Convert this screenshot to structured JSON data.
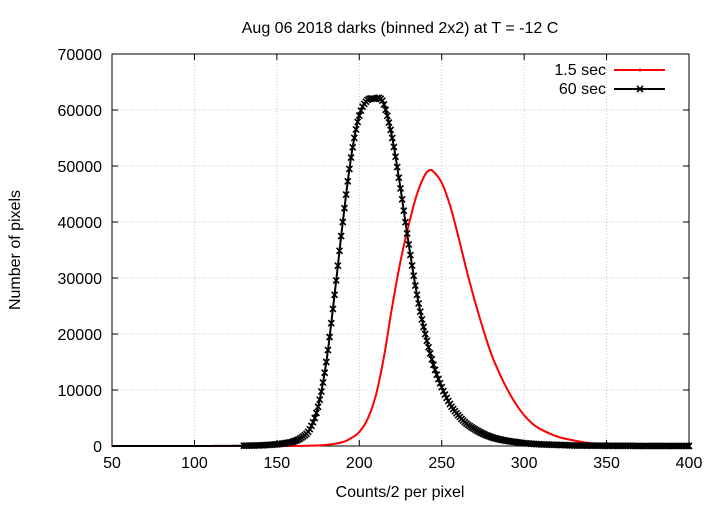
{
  "chart_data": {
    "type": "line",
    "title": "Aug 06 2018 darks (binned 2x2) at T = -12 C",
    "xlabel": "Counts/2 per pixel",
    "ylabel": "Number of pixels",
    "xlim": [
      50,
      400
    ],
    "ylim": [
      0,
      70000
    ],
    "xticks": [
      50,
      100,
      150,
      200,
      250,
      300,
      350,
      400
    ],
    "yticks": [
      0,
      10000,
      20000,
      30000,
      40000,
      50000,
      60000,
      70000
    ],
    "grid": true,
    "legend_position": "top-right",
    "series": [
      {
        "name": "1.5 sec",
        "color": "#ff0000",
        "marker": "dot",
        "x": [
          50,
          100,
          150,
          170,
          180,
          190,
          195,
          200,
          205,
          210,
          215,
          220,
          225,
          230,
          235,
          240,
          243,
          245,
          250,
          255,
          260,
          265,
          270,
          275,
          280,
          285,
          290,
          295,
          300,
          305,
          310,
          320,
          330,
          340,
          350,
          360,
          375,
          400
        ],
        "y": [
          0,
          0,
          0,
          50,
          200,
          700,
          1400,
          2500,
          4800,
          9000,
          16000,
          25000,
          33000,
          39500,
          45000,
          48500,
          49300,
          49000,
          47000,
          43000,
          37500,
          31500,
          26000,
          21000,
          16500,
          13000,
          10000,
          7500,
          5500,
          4000,
          3000,
          1700,
          1000,
          500,
          200,
          100,
          50,
          0
        ]
      },
      {
        "name": "60 sec",
        "color": "#000000",
        "marker": "x",
        "x": [
          50,
          100,
          130,
          135,
          140,
          145,
          150,
          155,
          160,
          165,
          170,
          175,
          180,
          185,
          190,
          195,
          200,
          205,
          210,
          212,
          215,
          220,
          225,
          230,
          235,
          240,
          245,
          250,
          255,
          260,
          265,
          270,
          275,
          280,
          285,
          290,
          295,
          300,
          310,
          320,
          330,
          340,
          360,
          380,
          400
        ],
        "y": [
          0,
          0,
          50,
          80,
          120,
          200,
          300,
          500,
          800,
          1500,
          3000,
          7000,
          15000,
          27000,
          40000,
          51500,
          59000,
          61800,
          62000,
          62200,
          61000,
          55000,
          46000,
          36000,
          27000,
          20000,
          14500,
          10500,
          7500,
          5500,
          4000,
          3000,
          2200,
          1600,
          1200,
          900,
          700,
          500,
          300,
          200,
          100,
          60,
          30,
          10,
          0
        ]
      }
    ]
  }
}
